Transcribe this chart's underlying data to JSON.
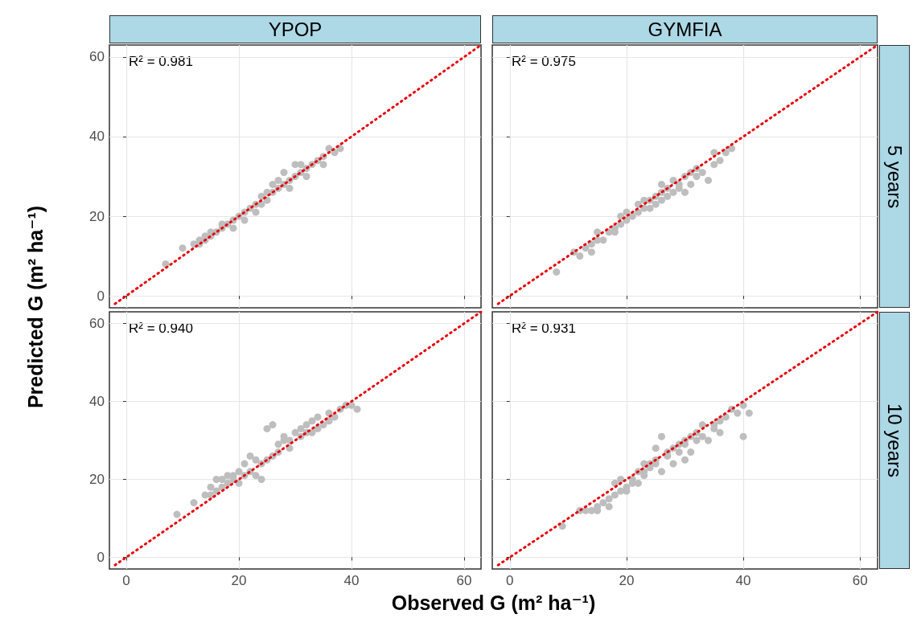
{
  "chart_data": [
    {
      "type": "scatter",
      "title": "YPOP",
      "ylabel": "Predicted G (m² ha⁻¹)",
      "annotations": [
        "R² = 0.981"
      ],
      "xlim": [
        -3,
        63
      ],
      "ylim": [
        -3,
        63
      ],
      "xticks": [
        0,
        20,
        40,
        60
      ],
      "yticks": [
        0,
        20,
        40,
        60
      ],
      "grid": true,
      "marker": "circle",
      "tick_labels": "y",
      "series": [
        {
          "color": "#bebebe",
          "x": [
            7,
            10,
            12,
            13,
            14,
            14,
            15,
            15,
            16,
            17,
            17,
            18,
            19,
            19,
            20,
            21,
            21,
            22,
            23,
            23,
            24,
            25,
            25,
            26,
            26,
            27,
            27,
            28,
            29,
            30,
            30,
            31,
            32,
            32,
            33,
            34,
            35,
            35,
            36,
            37,
            38,
            29,
            24,
            13,
            28,
            31
          ],
          "values": [
            8,
            12,
            13,
            14,
            15,
            14,
            16,
            15,
            16,
            18,
            17,
            18,
            17,
            19,
            20,
            21,
            19,
            22,
            23,
            21,
            23,
            26,
            24,
            28,
            26,
            27,
            29,
            28,
            29,
            33,
            30,
            31,
            32,
            30,
            33,
            34,
            35,
            33,
            37,
            36,
            37,
            27,
            25,
            13,
            31,
            33
          ]
        },
        {
          "type": "line",
          "color": "#e8000b",
          "x": [
            -2,
            63
          ],
          "values": [
            -2,
            63
          ],
          "line_style": "dotted",
          "marker": "none"
        }
      ]
    },
    {
      "type": "scatter",
      "title": "GYMFIA",
      "subtitle": "5 years",
      "annotations": [
        "R² = 0.975"
      ],
      "xlim": [
        -3,
        63
      ],
      "ylim": [
        -3,
        63
      ],
      "xticks": [
        0,
        20,
        40,
        60
      ],
      "yticks": [
        0,
        20,
        40,
        60
      ],
      "grid": true,
      "marker": "circle",
      "tick_labels": false,
      "series": [
        {
          "color": "#bebebe",
          "x": [
            8,
            11,
            12,
            13,
            14,
            14,
            15,
            15,
            16,
            17,
            18,
            19,
            19,
            20,
            21,
            22,
            22,
            23,
            24,
            25,
            25,
            26,
            26,
            27,
            27,
            28,
            28,
            29,
            30,
            30,
            31,
            32,
            32,
            33,
            34,
            35,
            35,
            36,
            37,
            38,
            20,
            23,
            29,
            31,
            18,
            24,
            26
          ],
          "values": [
            6,
            11,
            10,
            12,
            13,
            11,
            14,
            16,
            14,
            16,
            17,
            18,
            20,
            19,
            20,
            21,
            23,
            22,
            24,
            23,
            25,
            26,
            24,
            25,
            27,
            29,
            26,
            27,
            26,
            30,
            28,
            32,
            30,
            31,
            29,
            36,
            33,
            34,
            36,
            37,
            21,
            24,
            28,
            31,
            16,
            22,
            28
          ]
        },
        {
          "type": "line",
          "color": "#e8000b",
          "x": [
            -2,
            63
          ],
          "values": [
            -2,
            63
          ],
          "line_style": "dotted",
          "marker": "none"
        }
      ]
    },
    {
      "type": "scatter",
      "xlabel": "Observed G (m² ha⁻¹)",
      "annotations": [
        "R² = 0.940"
      ],
      "xlim": [
        -3,
        63
      ],
      "ylim": [
        -3,
        63
      ],
      "xticks": [
        0,
        20,
        40,
        60
      ],
      "yticks": [
        0,
        20,
        40,
        60
      ],
      "grid": true,
      "marker": "circle",
      "series": [
        {
          "color": "#bebebe",
          "x": [
            9,
            12,
            14,
            15,
            15,
            16,
            16,
            17,
            18,
            18,
            19,
            19,
            20,
            21,
            21,
            22,
            22,
            23,
            23,
            24,
            24,
            25,
            25,
            26,
            26,
            27,
            27,
            28,
            29,
            29,
            30,
            31,
            31,
            32,
            33,
            33,
            34,
            34,
            35,
            36,
            36,
            37,
            38,
            39,
            40,
            41,
            20,
            28,
            32,
            17
          ],
          "values": [
            11,
            14,
            16,
            16,
            18,
            17,
            20,
            18,
            19,
            21,
            20,
            21,
            19,
            21,
            24,
            26,
            22,
            25,
            21,
            20,
            24,
            25,
            33,
            34,
            26,
            27,
            29,
            30,
            28,
            30,
            32,
            31,
            33,
            34,
            32,
            35,
            33,
            36,
            34,
            35,
            37,
            36,
            38,
            39,
            39,
            38,
            22,
            31,
            32,
            20
          ]
        },
        {
          "type": "line",
          "color": "#e8000b",
          "x": [
            -2,
            63
          ],
          "values": [
            -2,
            63
          ],
          "line_style": "dotted",
          "marker": "none"
        }
      ]
    },
    {
      "type": "scatter",
      "subtitle": "10 years",
      "annotations": [
        "R² = 0.931"
      ],
      "xlim": [
        -3,
        63
      ],
      "ylim": [
        -3,
        63
      ],
      "xticks": [
        0,
        20,
        40,
        60
      ],
      "yticks": [
        0,
        20,
        40,
        60
      ],
      "grid": true,
      "marker": "circle",
      "tick_labels": "x",
      "series": [
        {
          "color": "#bebebe",
          "x": [
            9,
            12,
            13,
            14,
            15,
            15,
            16,
            17,
            17,
            18,
            18,
            19,
            20,
            20,
            21,
            21,
            22,
            22,
            23,
            23,
            24,
            25,
            25,
            25,
            26,
            26,
            27,
            27,
            28,
            28,
            29,
            29,
            30,
            30,
            31,
            31,
            32,
            32,
            33,
            33,
            34,
            35,
            35,
            36,
            36,
            37,
            38,
            39,
            40,
            41,
            40,
            30,
            19,
            24,
            23
          ],
          "values": [
            8,
            12,
            12,
            12,
            12,
            13,
            14,
            13,
            15,
            16,
            19,
            17,
            18,
            17,
            19,
            20,
            22,
            19,
            21,
            22,
            23,
            25,
            24,
            28,
            31,
            22,
            27,
            26,
            24,
            28,
            29,
            27,
            30,
            29,
            27,
            31,
            32,
            30,
            31,
            34,
            30,
            33,
            34,
            32,
            35,
            36,
            38,
            37,
            39,
            37,
            31,
            25,
            20,
            24,
            24
          ]
        },
        {
          "type": "line",
          "color": "#e8000b",
          "x": [
            -2,
            63
          ],
          "values": [
            -2,
            63
          ],
          "line_style": "dotted",
          "marker": "none"
        }
      ]
    }
  ]
}
